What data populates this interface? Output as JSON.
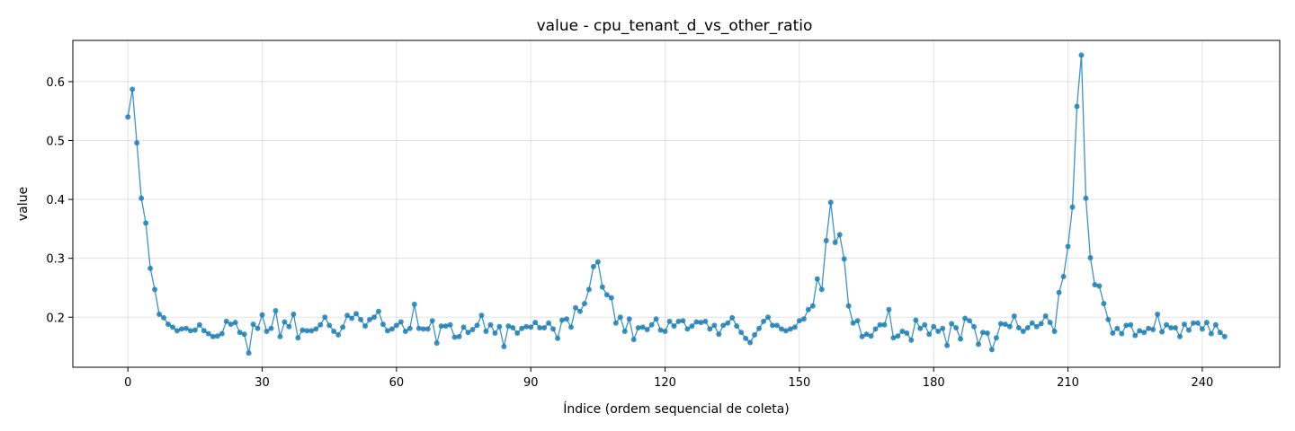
{
  "chart_data": {
    "type": "line",
    "title": "value - cpu_tenant_d_vs_other_ratio",
    "xlabel": "Índice (ordem sequencial de coleta)",
    "ylabel": "value",
    "xlim": [
      -12.3,
      257.3
    ],
    "ylim": [
      0.115,
      0.67
    ],
    "xticks": [
      0,
      30,
      60,
      90,
      120,
      150,
      180,
      210,
      240
    ],
    "yticks": [
      0.2,
      0.3,
      0.4,
      0.5,
      0.6
    ],
    "ytick_labels": [
      "0.2",
      "0.3",
      "0.4",
      "0.5",
      "0.6"
    ],
    "grid": true,
    "color": "#1f7fb4",
    "series": [
      {
        "x_start": 0,
        "values": [
          0.54,
          0.587,
          0.496,
          0.402,
          0.36,
          0.283,
          0.247,
          0.205,
          0.199,
          0.188,
          0.183,
          0.177,
          0.18,
          0.181,
          0.177,
          0.178,
          0.187,
          0.177,
          0.172,
          0.167,
          0.168,
          0.172,
          0.193,
          0.188,
          0.191,
          0.174,
          0.171,
          0.139,
          0.188,
          0.181,
          0.204,
          0.176,
          0.181,
          0.211,
          0.167,
          0.192,
          0.184,
          0.205,
          0.165,
          0.178,
          0.177,
          0.177,
          0.18,
          0.187,
          0.2,
          0.186,
          0.176,
          0.17,
          0.183,
          0.203,
          0.198,
          0.206,
          0.196,
          0.185,
          0.196,
          0.2,
          0.21,
          0.188,
          0.177,
          0.18,
          0.186,
          0.192,
          0.176,
          0.181,
          0.222,
          0.181,
          0.18,
          0.18,
          0.194,
          0.156,
          0.185,
          0.185,
          0.187,
          0.166,
          0.167,
          0.183,
          0.174,
          0.179,
          0.186,
          0.203,
          0.176,
          0.187,
          0.173,
          0.184,
          0.15,
          0.185,
          0.182,
          0.173,
          0.181,
          0.184,
          0.183,
          0.191,
          0.182,
          0.182,
          0.19,
          0.18,
          0.164,
          0.195,
          0.197,
          0.183,
          0.216,
          0.21,
          0.223,
          0.247,
          0.286,
          0.294,
          0.251,
          0.238,
          0.233,
          0.19,
          0.2,
          0.176,
          0.197,
          0.162,
          0.182,
          0.183,
          0.179,
          0.187,
          0.197,
          0.178,
          0.176,
          0.193,
          0.185,
          0.193,
          0.194,
          0.18,
          0.185,
          0.192,
          0.191,
          0.193,
          0.18,
          0.186,
          0.171,
          0.186,
          0.19,
          0.199,
          0.185,
          0.174,
          0.164,
          0.157,
          0.17,
          0.181,
          0.193,
          0.2,
          0.186,
          0.186,
          0.18,
          0.177,
          0.18,
          0.183,
          0.194,
          0.197,
          0.213,
          0.219,
          0.265,
          0.247,
          0.33,
          0.395,
          0.327,
          0.34,
          0.299,
          0.219,
          0.19,
          0.194,
          0.167,
          0.171,
          0.168,
          0.18,
          0.187,
          0.187,
          0.213,
          0.165,
          0.168,
          0.176,
          0.173,
          0.161,
          0.195,
          0.181,
          0.187,
          0.171,
          0.184,
          0.176,
          0.181,
          0.152,
          0.189,
          0.182,
          0.163,
          0.198,
          0.194,
          0.184,
          0.154,
          0.174,
          0.173,
          0.145,
          0.165,
          0.189,
          0.188,
          0.184,
          0.202,
          0.182,
          0.176,
          0.182,
          0.19,
          0.184,
          0.189,
          0.202,
          0.191,
          0.176,
          0.242,
          0.269,
          0.32,
          0.387,
          0.558,
          0.645,
          0.402,
          0.301,
          0.255,
          0.253,
          0.223,
          0.196,
          0.173,
          0.181,
          0.172,
          0.186,
          0.187,
          0.169,
          0.177,
          0.174,
          0.181,
          0.179,
          0.205,
          0.175,
          0.187,
          0.182,
          0.182,
          0.167,
          0.188,
          0.178,
          0.19,
          0.19,
          0.18,
          0.191,
          0.172,
          0.187,
          0.174,
          0.167
        ]
      }
    ]
  }
}
